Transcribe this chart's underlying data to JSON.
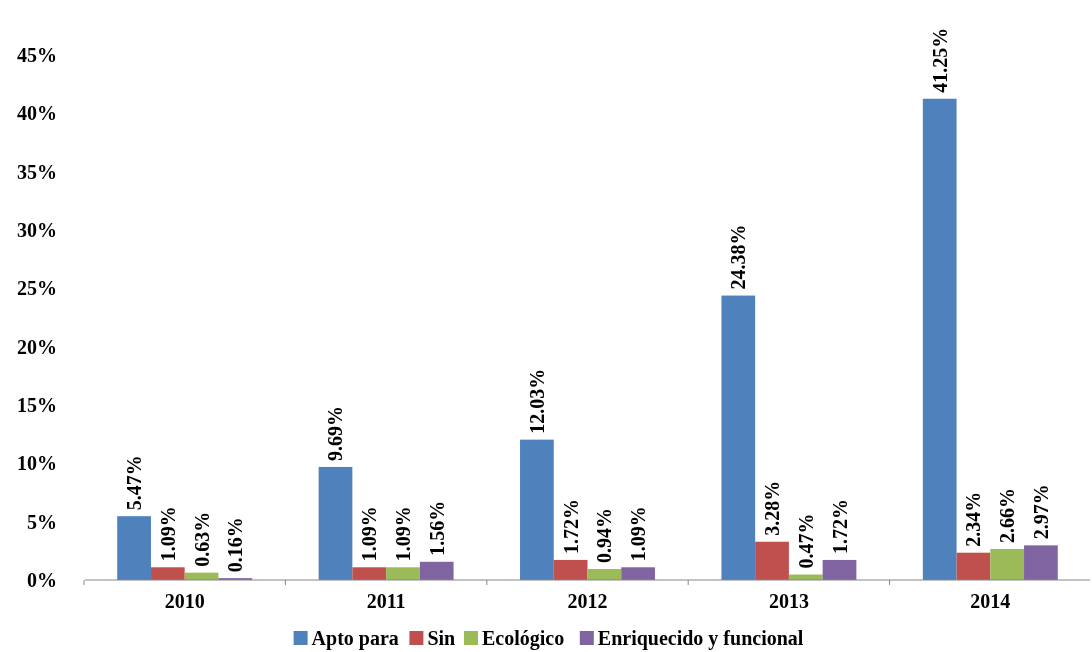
{
  "chart_data": {
    "type": "bar",
    "categories": [
      "2010",
      "2011",
      "2012",
      "2013",
      "2014"
    ],
    "series": [
      {
        "name": "Apto para",
        "color": "#4f81bd",
        "values": [
          5.47,
          9.69,
          12.03,
          24.38,
          41.25
        ],
        "value_labels": [
          "5.47%",
          "9.69%",
          "12.03%",
          "24.38%",
          "41.25%"
        ]
      },
      {
        "name": "Sin",
        "color": "#c0504d",
        "values": [
          1.09,
          1.09,
          1.72,
          3.28,
          2.34
        ],
        "value_labels": [
          "1.09%",
          "1.09%",
          "1.72%",
          "3.28%",
          "2.34%"
        ]
      },
      {
        "name": "Ecológico",
        "color": "#9bbb59",
        "values": [
          0.63,
          1.09,
          0.94,
          0.47,
          2.66
        ],
        "value_labels": [
          "0.63%",
          "1.09%",
          "0.94%",
          "0.47%",
          "2.66%"
        ]
      },
      {
        "name": "Enriquecido y funcional",
        "color": "#8064a2",
        "values": [
          0.16,
          1.56,
          1.09,
          1.72,
          2.97
        ],
        "value_labels": [
          "0.16%",
          "1.56%",
          "1.09%",
          "1.72%",
          "2.97%"
        ]
      }
    ],
    "ylim": [
      0,
      45
    ],
    "yticks": [
      {
        "value": 0,
        "label": "0%"
      },
      {
        "value": 5,
        "label": "5%"
      },
      {
        "value": 10,
        "label": "10%"
      },
      {
        "value": 15,
        "label": "15%"
      },
      {
        "value": 20,
        "label": "20%"
      },
      {
        "value": 25,
        "label": "25%"
      },
      {
        "value": 30,
        "label": "30%"
      },
      {
        "value": 35,
        "label": "35%"
      },
      {
        "value": 40,
        "label": "40%"
      },
      {
        "value": 45,
        "label": "45%"
      }
    ],
    "grid": false,
    "legend": "bottom"
  }
}
